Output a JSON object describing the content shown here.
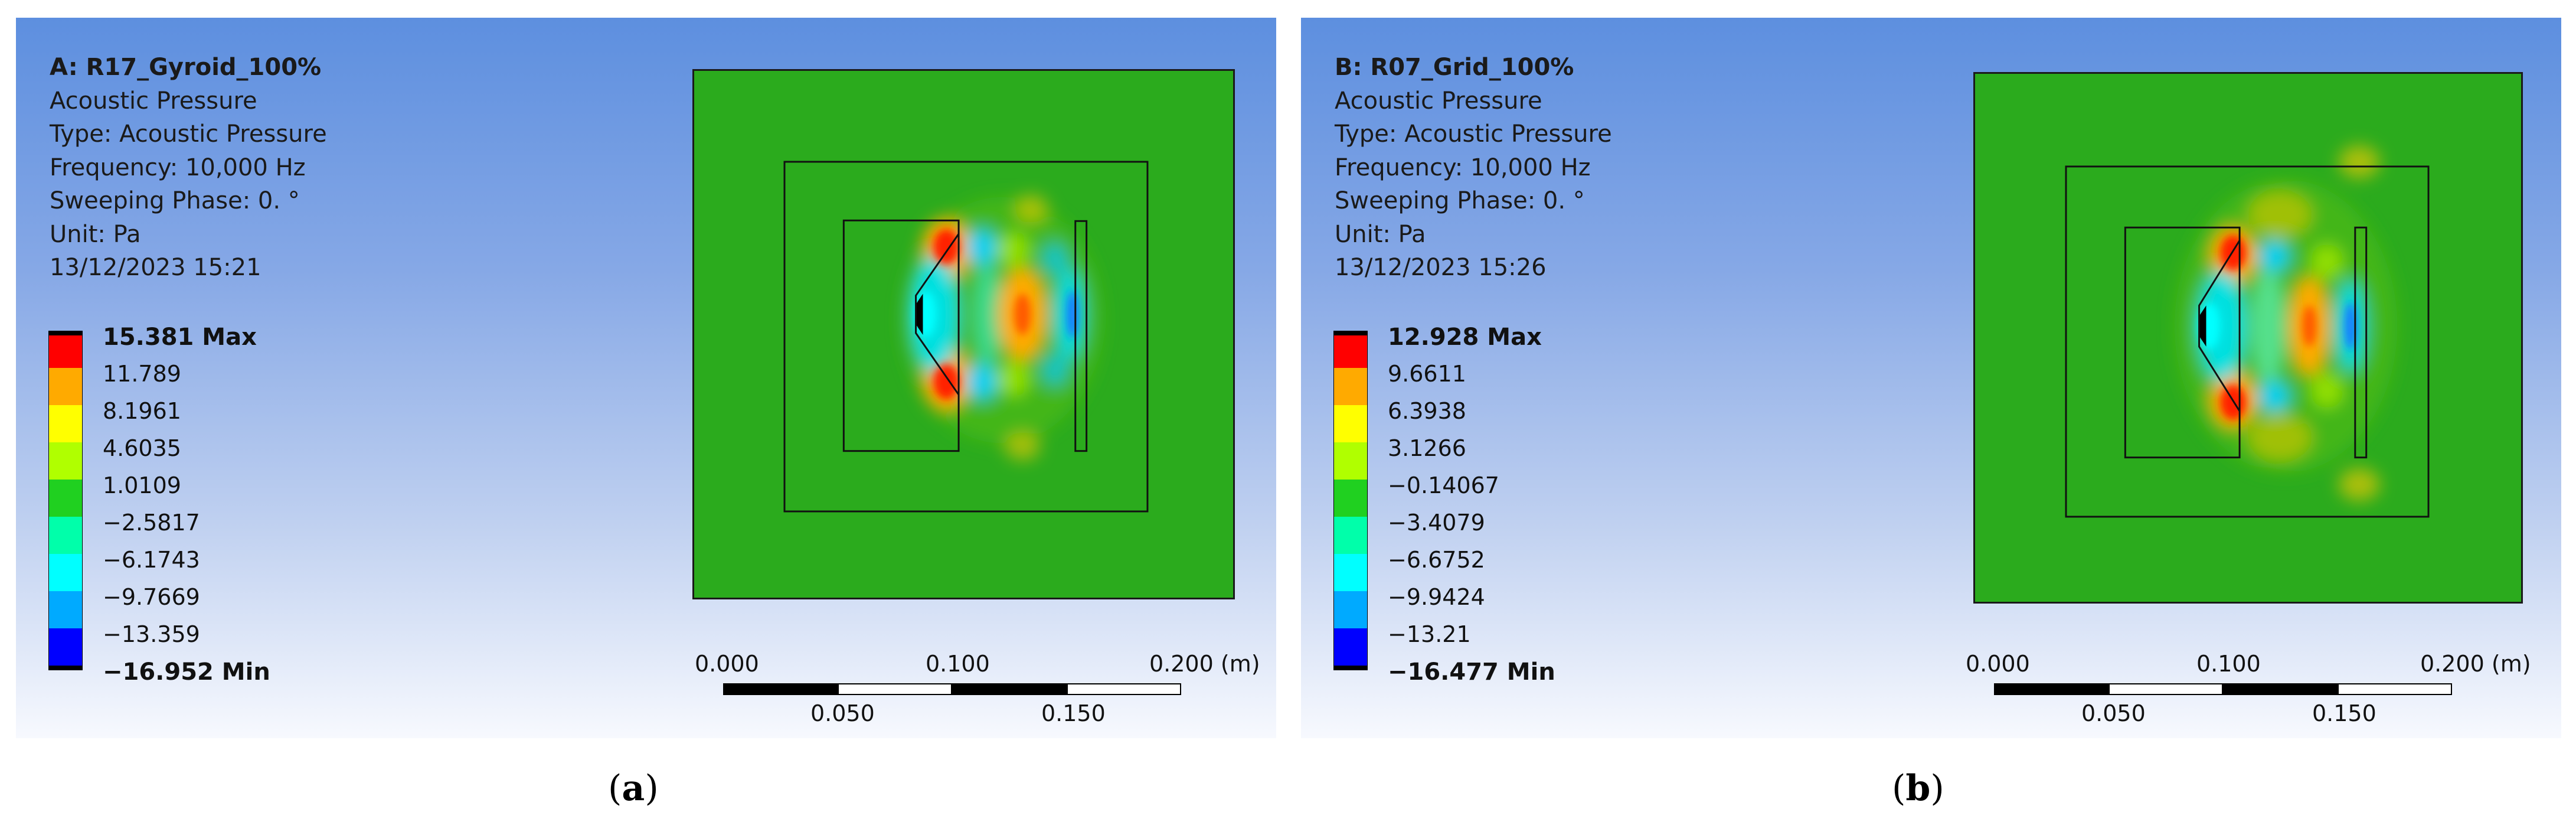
{
  "panels": [
    {
      "id": "a",
      "title": "A: R17_Gyroid_100%",
      "lines": [
        "Acoustic Pressure",
        "Type: Acoustic Pressure",
        "Frequency: 10,000 Hz",
        "Sweeping Phase: 0. °",
        "Unit: Pa",
        "13/12/2023 15:21"
      ],
      "legend_labels": [
        "15.381 Max",
        "11.789",
        "8.1961",
        "4.6035",
        "1.0109",
        "−2.5817",
        "−6.1743",
        "−9.7669",
        "−13.359",
        "−16.952 Min"
      ],
      "scale_top": [
        "0.000",
        "0.100",
        "0.200 (m)"
      ],
      "scale_bottom": [
        "0.050",
        "0.150"
      ],
      "caption_letter": "a"
    },
    {
      "id": "b",
      "title": "B: R07_Grid_100%",
      "lines": [
        "Acoustic Pressure",
        "Type: Acoustic Pressure",
        "Frequency: 10,000 Hz",
        "Sweeping Phase: 0. °",
        "Unit: Pa",
        "13/12/2023 15:26"
      ],
      "legend_labels": [
        "12.928 Max",
        "9.6611",
        "6.3938",
        "3.1266",
        "−0.14067",
        "−3.4079",
        "−6.6752",
        "−9.9424",
        "−13.21",
        "−16.477 Min"
      ],
      "scale_top": [
        "0.000",
        "0.100",
        "0.200 (m)"
      ],
      "scale_bottom": [
        "0.050",
        "0.150"
      ],
      "caption_letter": "b"
    }
  ],
  "colors": {
    "legend": [
      "#ff0000",
      "#ffaa00",
      "#ffff00",
      "#b0ff00",
      "#20d020",
      "#00ffaa",
      "#00ffff",
      "#00aaff",
      "#0000ff"
    ],
    "field_background": "#2bab1d"
  }
}
